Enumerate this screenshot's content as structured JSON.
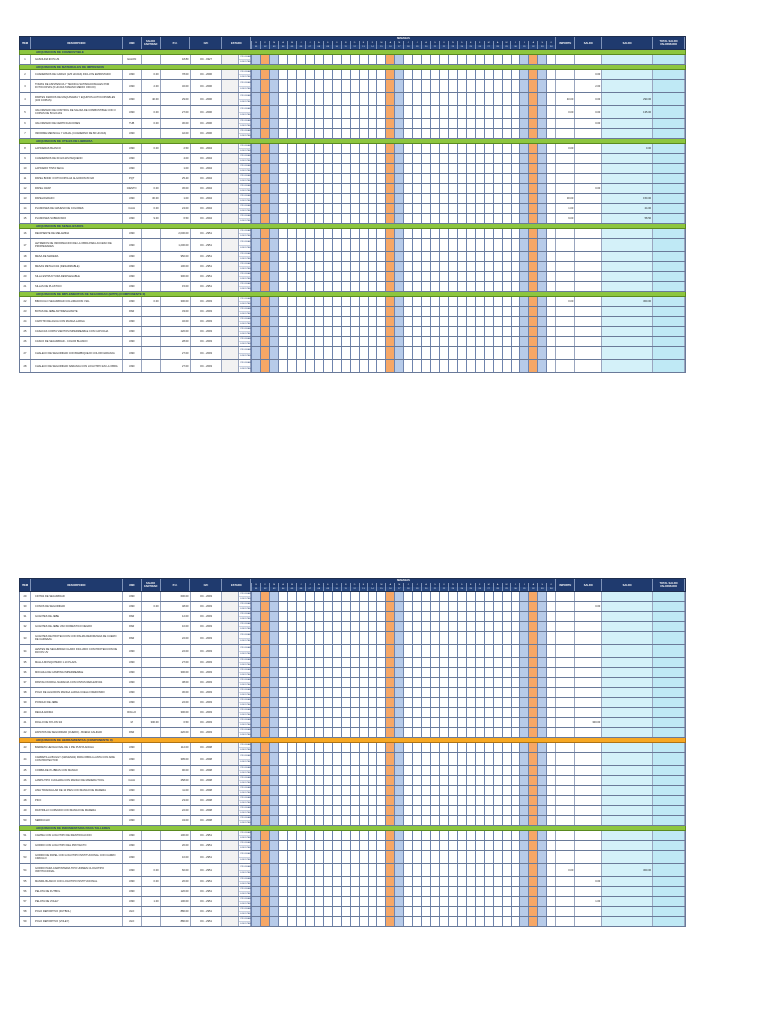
{
  "header": {
    "item": "ITEM",
    "description": "DESCRIPCION",
    "unit": "UND",
    "qty": "SALDO CANTIDAD",
    "pu": "P.U.",
    "oc": "O/C",
    "status": "ESTADO",
    "weeks_title": "SEMANAS",
    "months": [
      "E",
      "F",
      "M",
      "A",
      "M",
      "J",
      "J",
      "A",
      "S",
      "O",
      "N",
      "D",
      "E",
      "F",
      "M",
      "A",
      "M",
      "J",
      "J",
      "A",
      "S",
      "O",
      "N",
      "D",
      "E",
      "F",
      "M",
      "A",
      "M",
      "J",
      "J",
      "A",
      "S",
      "O"
    ],
    "days": [
      "01",
      "02",
      "03",
      "04",
      "05",
      "06",
      "07",
      "08",
      "09",
      "10",
      "11",
      "12",
      "13",
      "14",
      "15",
      "16",
      "17",
      "18",
      "19",
      "20",
      "21",
      "22",
      "23",
      "24",
      "25",
      "26",
      "27",
      "28",
      "29",
      "30",
      "31",
      "32",
      "33",
      "34"
    ],
    "col_a": "IMPORTE",
    "col_b": "SALDO",
    "col_c": "SALDO",
    "col_d": "TOTAL SALDO VALORIZADO"
  },
  "plan_labels": [
    "PROGRAMADO",
    "EJECUTADO"
  ],
  "sheets": [
    {
      "sections": [
        {
          "title": "ADQUISICION DE COMBUSTIBLE",
          "color": "green",
          "rows": [
            {
              "n": "1",
              "d": "GASOLINA 90 PLUS",
              "u": "GALON",
              "q": "",
              "p": "18.80",
              "o": "OC - 0327",
              "v1": "",
              "v2": "",
              "v3": ""
            }
          ]
        },
        {
          "title": "ADQUISICION DE MATERIALES DE IMPRESION",
          "color": "green",
          "rows": [
            {
              "n": "2",
              "d": "CUADERNOS DE CARGO (125 HOJAS) INCLUYE EMPASTADO",
              "u": "UND",
              "q": "0.00",
              "p": "78.00",
              "o": "OC - 2096",
              "v1": "",
              "v2": "0.00",
              "v3": ""
            },
            {
              "n": "3",
              "d": "TOMAS DE ASISTENCIA Y TECNICA SATISFACIONALES POR FOTOCOPIAS (6 HOJAS TAMANO MEDIO OFICIO)",
              "u": "UND",
              "q": "2.00",
              "p": "32.00",
              "o": "OC - 2096",
              "v1": "",
              "v2": "2.00",
              "v3": ""
            },
            {
              "n": "4",
              "d": "PARTES DIARIOS DE MAQUINARIA Y EQUIPOS AUTOCOPIABLES (100 COPIAS)",
              "u": "UND",
              "q": "40.00",
              "p": "29.00",
              "o": "OC - 2096",
              "v1": "40.00",
              "v2": "0.00",
              "v3": "290.00"
            },
            {
              "n": "5",
              "d": "VALORIZADO DE CONTROL DE SALIDA DE COMBUSTIBLE CON 3 COPIAS DE 50 HOJAS",
              "u": "UND",
              "q": "0.00",
              "p": "27.00",
              "o": "OC - 2096",
              "v1": "0.00",
              "v2": "0.00",
              "v3": "135.00"
            },
            {
              "n": "6",
              "d": "VALORIZADO DE CERTIFICACIONES",
              "u": "TUB",
              "q": "0.00",
              "p": "30.00",
              "o": "OC - 2096",
              "v1": "",
              "v2": "0.00",
              "v3": ""
            },
            {
              "n": "7",
              "d": "INFORME MENSUAL Y ANUAL (CUADERNO DE 80 HOJAS)",
              "u": "UND",
              "q": "",
              "p": "42.00",
              "o": "OC - 2096",
              "v1": "",
              "v2": "",
              "v3": ""
            }
          ]
        },
        {
          "title": "ADQUISICION DE UTILES DE LIBRERIA",
          "color": "green",
          "rows": [
            {
              "n": "8",
              "d": "LAPICERAS BLANCO",
              "u": "UND",
              "q": "0.00",
              "p": "2.50",
              "o": "OC - 2094",
              "v1": "0.00",
              "v2": "",
              "v3": "0.00"
            },
            {
              "n": "9",
              "d": "CUADERNOS DE 60 HOJAS PEQUENO",
              "u": "UND",
              "q": "",
              "p": "4.00",
              "o": "OC - 2094",
              "v1": "",
              "v2": "",
              "v3": ""
            },
            {
              "n": "10",
              "d": "LAPICERO TINTA SECA",
              "u": "UND",
              "q": "",
              "p": "1.00",
              "o": "OC - 2094",
              "v1": "",
              "v2": "",
              "v3": ""
            },
            {
              "n": "11",
              "d": "PAPEL BOND / FOTOCOPIA A4 ALGODON 80 GR",
              "u": "PQT",
              "q": "",
              "p": "25.40",
              "o": "OC - 2094",
              "v1": "",
              "v2": "",
              "v3": ""
            },
            {
              "n": "12",
              "d": "PAPEL CRAP",
              "u": "CIENTO",
              "q": "0.00",
              "p": "36.00",
              "o": "OC - 2094",
              "v1": "",
              "v2": "0.00",
              "v3": ""
            },
            {
              "n": "13",
              "d": "PAPELOGRAFO",
              "u": "UND",
              "q": "30.00",
              "p": "1.00",
              "o": "OC - 2094",
              "v1": "30.00",
              "v2": "",
              "v3": "150.00"
            },
            {
              "n": "14",
              "d": "PLUMONES DE GRUESO DE COLORES",
              "u": "CAJA",
              "q": "0.00",
              "p": "24.00",
              "o": "OC - 2094",
              "v1": "1.00",
              "v2": "",
              "v3": "24.00"
            },
            {
              "n": "15",
              "d": "PLUMONES SUBRAYADO",
              "u": "UND",
              "q": "9.00",
              "p": "6.50",
              "o": "OC - 2094",
              "v1": "9.00",
              "v2": "",
              "v3": "58.50"
            }
          ]
        },
        {
          "title": "ADQUISICION DE SENALIZADOS",
          "color": "green",
          "rows": [
            {
              "n": "16",
              "d": "RECIPIENTE DE MELAMINA",
              "u": "UND",
              "q": "",
              "p": "2,000.00",
              "o": "OC - 2951",
              "v1": "",
              "v2": "",
              "v3": ""
            },
            {
              "n": "17",
              "d": "LETREROS DE INFORMACION DE LA OBRA PARA ACCESO DE PROPIEDADES",
              "u": "UND",
              "q": "",
              "p": "1,200.00",
              "o": "OC - 2951",
              "v1": "",
              "v2": "",
              "v3": ""
            },
            {
              "n": "18",
              "d": "MESA DE MADERA",
              "u": "UND",
              "q": "",
              "p": "950.00",
              "o": "OC - 2951",
              "v1": "",
              "v2": "",
              "v3": ""
            },
            {
              "n": "19",
              "d": "MESAS METALICAS (DESARMABLE)",
              "u": "UND",
              "q": "",
              "p": "100.00",
              "o": "OC - 2951",
              "v1": "",
              "v2": "",
              "v3": ""
            },
            {
              "n": "20",
              "d": "SILLA ESTRUCTURA DESPLEGABLE",
              "u": "UND",
              "q": "",
              "p": "300.00",
              "o": "OC - 2951",
              "v1": "",
              "v2": "",
              "v3": ""
            },
            {
              "n": "21",
              "d": "SILLAS DE PLASTICO",
              "u": "UND",
              "q": "",
              "p": "15.00",
              "o": "OC - 2951",
              "v1": "",
              "v2": "",
              "v3": ""
            }
          ]
        },
        {
          "title": "ADQUISICION DE IMPLEMENTOS DE SEGURIDAD (EPPS) (COMPONENTE II)",
          "color": "green",
          "rows": [
            {
              "n": "22",
              "d": "BINOCULO SEGURIDAD COLLIMACION VIAL",
              "u": "UND",
              "q": "0.00",
              "p": "300.00",
              "o": "OC - 2093",
              "v1": "0.00",
              "v2": "",
              "v3": "300.00"
            },
            {
              "n": "23",
              "d": "BOTAS DE JEBE ANTIDESLIZANTE",
              "u": "PAR",
              "q": "",
              "p": "33.00",
              "o": "OC - 2093",
              "v1": "",
              "v2": "",
              "v3": ""
            },
            {
              "n": "24",
              "d": "CAPOTIN DE AGUA CON MANGA LARGA",
              "u": "UND",
              "q": "",
              "p": "32.00",
              "o": "OC - 2093",
              "v1": "",
              "v2": "",
              "v3": ""
            },
            {
              "n": "25",
              "d": "CASACAS CORTA VIENTOS IMPERMEABLE CON CAPUCHA",
              "u": "UND",
              "q": "",
              "p": "220.00",
              "o": "OC - 2093",
              "v1": "",
              "v2": "",
              "v3": ""
            },
            {
              "n": "26",
              "d": "CASCO DE SEGURIDAD - COLOR BLANCO",
              "u": "UND",
              "q": "",
              "p": "28.00",
              "o": "OC - 2093",
              "v1": "",
              "v2": "",
              "v3": ""
            },
            {
              "n": "27",
              "d": "CHALECO DE SEGURIDAD CON BARBIQUEJO COLOR NARANJA",
              "u": "UND",
              "q": "",
              "p": "27.00",
              "o": "OC - 2093",
              "v1": "",
              "v2": "",
              "v3": ""
            },
            {
              "n": "28",
              "d": "CHALECO DE SEGURIDAD NARANJA CON LOGOTIPO EN LA OBRA",
              "u": "UND",
              "q": "",
              "p": "27.00",
              "o": "OC - 2093",
              "v1": "",
              "v2": "",
              "v3": ""
            }
          ]
        }
      ]
    },
    {
      "sections": [
        {
          "title": "",
          "color": "none",
          "rows": [
            {
              "n": "29",
              "d": "CINTAS DE SEGURIDAD",
              "u": "UND",
              "q": "",
              "p": "600.00",
              "o": "OC - 2093",
              "v1": "",
              "v2": "",
              "v3": ""
            },
            {
              "n": "30",
              "d": "CONOS DE SEGURIDAD",
              "u": "UND",
              "q": "0.00",
              "p": "48.00",
              "o": "OC - 2093",
              "v1": "",
              "v2": "0.00",
              "v3": ""
            },
            {
              "n": "31",
              "d": "GUANTES DE JEBE",
              "u": "PAR",
              "q": "",
              "p": "12.00",
              "o": "OC - 2093",
              "v1": "",
              "v2": "",
              "v3": ""
            },
            {
              "n": "32",
              "d": "GUANTES DE JEBE USO DOMESTICO NEGRO",
              "u": "PAR",
              "q": "",
              "p": "10.00",
              "o": "OC - 2093",
              "v1": "",
              "v2": "",
              "v3": ""
            },
            {
              "n": "33",
              "d": "GUANTES DE PROTECCION CON PALMA REFORZADA DE CUERO DE CARNAZA",
              "u": "PAR",
              "q": "",
              "p": "22.00",
              "o": "OC - 2093",
              "v1": "",
              "v2": "",
              "v3": ""
            },
            {
              "n": "34",
              "d": "LENTES DE SEGURIDAD CLARO INCLUIDO CON PROTECCION DE RAYOS UV",
              "u": "UND",
              "q": "",
              "p": "22.00",
              "o": "OC - 2093",
              "v1": "",
              "v2": "",
              "v3": ""
            },
            {
              "n": "35",
              "d": "MALLA MOSQUITERO 1.10 PLAZA",
              "u": "UND",
              "q": "",
              "p": "27.00",
              "o": "OC - 2093",
              "v1": "",
              "v2": "",
              "v3": ""
            },
            {
              "n": "36",
              "d": "MOCHILA DE CAMPING IMPERMEABLE",
              "u": "UND",
              "q": "",
              "p": "300.00",
              "o": "OC - 2093",
              "v1": "",
              "v2": "",
              "v3": ""
            },
            {
              "n": "37",
              "d": "PANTALON DRILL NARANJA CON CINTAS REFLEXIVAS",
              "u": "UND",
              "q": "",
              "p": "38.00",
              "o": "OC - 2093",
              "v1": "",
              "v2": "",
              "v3": ""
            },
            {
              "n": "38",
              "d": "POLO DE ALGODON MANGA LARGA CUELLO REDONDO",
              "u": "UND",
              "q": "",
              "p": "30.00",
              "o": "OC - 2093",
              "v1": "",
              "v2": "",
              "v3": ""
            },
            {
              "n": "39",
              "d": "PONCHO DE JEBE",
              "u": "UND",
              "q": "",
              "p": "22.00",
              "o": "OC - 2093",
              "v1": "",
              "v2": "",
              "v3": ""
            },
            {
              "n": "40",
              "d": "REGULADORA",
              "u": "ROLLO",
              "q": "",
              "p": "300.00",
              "o": "OC - 2093",
              "v1": "",
              "v2": "",
              "v3": ""
            },
            {
              "n": "41",
              "d": "ROLLO DE NYLON 3/4",
              "u": "M",
              "q": "300.00",
              "p": "0.50",
              "o": "OC - 2093",
              "v1": "",
              "v2": "300.00",
              "v3": ""
            },
            {
              "n": "42",
              "d": "ZAPATOS DE SEGURIDAD (CUERO) - BUENA CALIDAD",
              "u": "PAR",
              "q": "",
              "p": "220.00",
              "o": "OC - 2093",
              "v1": "",
              "v2": "",
              "v3": ""
            }
          ]
        },
        {
          "title": "ADQUISICION DE HERRAMIENTAS (COMPONENTE II)",
          "color": "orange",
          "rows": [
            {
              "n": "43",
              "d": "BARRETA HEXAGONAL DE 1 PIE PUNTA ANCHA",
              "u": "UND",
              "q": "",
              "p": "112.00",
              "o": "OC - 2098",
              "v1": "",
              "v2": "",
              "v3": ""
            },
            {
              "n": "44",
              "d": "CARRETILLA BUGGY (GRUENAS) PARA OBRA LLANTA CON AIRE CON PROTECTOR",
              "u": "UND",
              "q": "",
              "p": "395.00",
              "o": "OC - 2098",
              "v1": "",
              "v2": "",
              "v3": ""
            },
            {
              "n": "45",
              "d": "COMBA DE 8 LIBRAS CON MANGO",
              "u": "UND",
              "q": "",
              "p": "90.00",
              "o": "OC - 2098",
              "v1": "",
              "v2": "",
              "v3": ""
            },
            {
              "n": "46",
              "d": "LAMPA TIPO CUCHARA CON MANGO DE MADERA TOOL",
              "u": "CAJA",
              "q": "",
              "p": "258.00",
              "o": "OC - 2098",
              "v1": "",
              "v2": "",
              "v3": ""
            },
            {
              "n": "47",
              "d": "LIMA TRIANGULAR DE 10 PIES CON MANGO DE MADERA",
              "u": "UND",
              "q": "",
              "p": "11.00",
              "o": "OC - 2098",
              "v1": "",
              "v2": "",
              "v3": ""
            },
            {
              "n": "48",
              "d": "PICO",
              "u": "UND",
              "q": "",
              "p": "23.00",
              "o": "OC - 2098",
              "v1": "",
              "v2": "",
              "v3": ""
            },
            {
              "n": "49",
              "d": "RASTRILLO CURVADO CON MANGO DE MADERA",
              "u": "UND",
              "q": "",
              "p": "22.00",
              "o": "OC - 2098",
              "v1": "",
              "v2": "",
              "v3": ""
            },
            {
              "n": "50",
              "d": "SERRUCHO",
              "u": "UND",
              "q": "",
              "p": "34.00",
              "o": "OC - 2098",
              "v1": "",
              "v2": "",
              "v3": ""
            }
          ]
        },
        {
          "title": "ADQUISICION DE INDUMENTARIA PARA TALLERES",
          "color": "green",
          "rows": [
            {
              "n": "51",
              "d": "CAMISA CON LOGOTIPO DE IDENTIFICACION",
              "u": "UND",
              "q": "",
              "p": "100.00",
              "o": "OC - 2951",
              "v1": "",
              "v2": "",
              "v3": ""
            },
            {
              "n": "52",
              "d": "GORRO CON LOGOTIPO DEL PROYECTO",
              "u": "UND",
              "q": "",
              "p": "20.00",
              "o": "OC - 2951",
              "v1": "",
              "v2": "",
              "v3": ""
            },
            {
              "n": "53",
              "d": "GORRO DE PAPEL CON LOGOTIPO INSTITUCIONAL CON CARRO CIRCULO",
              "u": "UND",
              "q": "",
              "p": "10.00",
              "o": "OC - 2951",
              "v1": "",
              "v2": "",
              "v3": ""
            },
            {
              "n": "54",
              "d": "GORRO PARA CARPINTERIA TIPO UNIMEN CLOGOTIPO INSTITUCIONAL",
              "u": "UND",
              "q": "0.00",
              "p": "60.00",
              "o": "OC - 2951",
              "v1": "0.00",
              "v2": "",
              "v3": "300.00"
            },
            {
              "n": "55",
              "d": "MANDIL BLANCO CON LOGOTIPO INSTITUCIONAL",
              "u": "UND",
              "q": "0.00",
              "p": "20.00",
              "o": "OC - 2951",
              "v1": "",
              "v2": "0.00",
              "v3": ""
            },
            {
              "n": "56",
              "d": "PELOTA DE FUTBOL",
              "u": "UND",
              "q": "",
              "p": "120.00",
              "o": "OC - 2951",
              "v1": "",
              "v2": "",
              "v3": ""
            },
            {
              "n": "57",
              "d": "PELOTA DE VOLEY",
              "u": "UND",
              "q": "1.00",
              "p": "100.00",
              "o": "OC - 2951",
              "v1": "",
              "v2": "1.00",
              "v3": ""
            },
            {
              "n": "58",
              "d": "POLO DEPORTIVO (FUTBOL)",
              "u": "JGO",
              "q": "",
              "p": "880.00",
              "o": "OC - 2951",
              "v1": "",
              "v2": "",
              "v3": ""
            },
            {
              "n": "59",
              "d": "POLO DEPORTIVO (VOLEY)",
              "u": "JGO",
              "q": "",
              "p": "880.00",
              "o": "OC - 2951",
              "v1": "",
              "v2": "",
              "v3": ""
            }
          ]
        }
      ]
    }
  ]
}
